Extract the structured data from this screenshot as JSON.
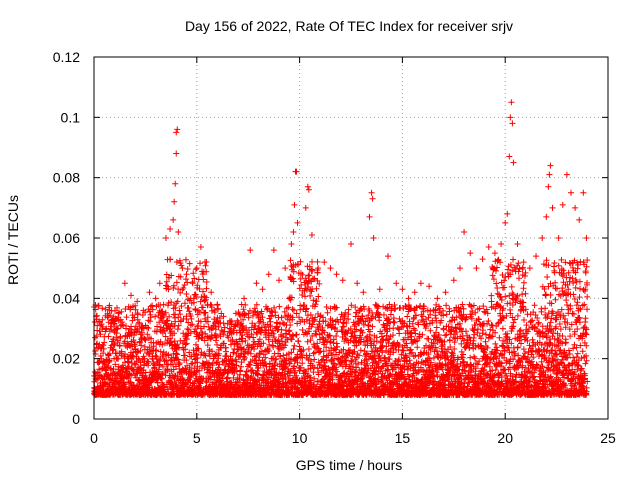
{
  "chart_data": {
    "type": "scatter",
    "title": "Day 156 of 2022, Rate Of TEC Index for receiver srjv",
    "xlabel": "GPS time / hours",
    "ylabel": "ROTI / TECUs",
    "xlim": [
      0,
      25
    ],
    "ylim": [
      0,
      0.12
    ],
    "x_ticks": [
      "0",
      "5",
      "10",
      "15",
      "20",
      "25"
    ],
    "y_ticks": [
      "0",
      "0.02",
      "0.04",
      "0.06",
      "0.08",
      "0.1",
      "0.12"
    ],
    "grid": true,
    "marker": "+",
    "color": "#ff0000",
    "series": [
      {
        "name": "ROTI",
        "points": [
          [
            0.1,
            0.034
          ],
          [
            0.3,
            0.031
          ],
          [
            0.6,
            0.03
          ],
          [
            0.9,
            0.033
          ],
          [
            1.2,
            0.035
          ],
          [
            1.5,
            0.045
          ],
          [
            1.8,
            0.041
          ],
          [
            2.1,
            0.039
          ],
          [
            2.4,
            0.036
          ],
          [
            2.7,
            0.042
          ],
          [
            3.0,
            0.04
          ],
          [
            3.2,
            0.045
          ],
          [
            3.5,
            0.06
          ],
          [
            3.7,
            0.063
          ],
          [
            3.85,
            0.066
          ],
          [
            3.9,
            0.072
          ],
          [
            3.95,
            0.078
          ],
          [
            4.0,
            0.088
          ],
          [
            4.0,
            0.095
          ],
          [
            4.05,
            0.096
          ],
          [
            4.1,
            0.062
          ],
          [
            4.3,
            0.05
          ],
          [
            4.5,
            0.048
          ],
          [
            4.8,
            0.045
          ],
          [
            5.0,
            0.05
          ],
          [
            5.2,
            0.057
          ],
          [
            5.4,
            0.052
          ],
          [
            5.7,
            0.042
          ],
          [
            6.0,
            0.038
          ],
          [
            6.3,
            0.034
          ],
          [
            6.6,
            0.03
          ],
          [
            6.9,
            0.035
          ],
          [
            7.3,
            0.04
          ],
          [
            7.6,
            0.056
          ],
          [
            7.9,
            0.045
          ],
          [
            8.2,
            0.043
          ],
          [
            8.5,
            0.048
          ],
          [
            8.75,
            0.056
          ],
          [
            9.0,
            0.046
          ],
          [
            9.3,
            0.05
          ],
          [
            9.6,
            0.058
          ],
          [
            9.7,
            0.062
          ],
          [
            9.75,
            0.071
          ],
          [
            9.8,
            0.082
          ],
          [
            9.85,
            0.082
          ],
          [
            9.9,
            0.065
          ],
          [
            10.3,
            0.07
          ],
          [
            10.4,
            0.077
          ],
          [
            10.45,
            0.076
          ],
          [
            10.6,
            0.061
          ],
          [
            10.9,
            0.05
          ],
          [
            11.2,
            0.052
          ],
          [
            11.5,
            0.05
          ],
          [
            11.8,
            0.048
          ],
          [
            12.1,
            0.046
          ],
          [
            12.5,
            0.058
          ],
          [
            12.8,
            0.045
          ],
          [
            13.1,
            0.042
          ],
          [
            13.4,
            0.067
          ],
          [
            13.5,
            0.075
          ],
          [
            13.55,
            0.073
          ],
          [
            13.6,
            0.06
          ],
          [
            13.9,
            0.043
          ],
          [
            14.3,
            0.054
          ],
          [
            14.7,
            0.045
          ],
          [
            15.0,
            0.043
          ],
          [
            15.3,
            0.04
          ],
          [
            15.6,
            0.042
          ],
          [
            15.9,
            0.045
          ],
          [
            16.3,
            0.044
          ],
          [
            16.7,
            0.04
          ],
          [
            17.1,
            0.042
          ],
          [
            17.5,
            0.046
          ],
          [
            17.8,
            0.05
          ],
          [
            18.0,
            0.062
          ],
          [
            18.3,
            0.055
          ],
          [
            18.6,
            0.05
          ],
          [
            18.9,
            0.053
          ],
          [
            19.2,
            0.057
          ],
          [
            19.5,
            0.055
          ],
          [
            19.8,
            0.058
          ],
          [
            20.0,
            0.065
          ],
          [
            20.1,
            0.068
          ],
          [
            20.2,
            0.087
          ],
          [
            20.25,
            0.1
          ],
          [
            20.3,
            0.105
          ],
          [
            20.35,
            0.098
          ],
          [
            20.4,
            0.085
          ],
          [
            20.6,
            0.058
          ],
          [
            20.9,
            0.052
          ],
          [
            21.2,
            0.05
          ],
          [
            21.5,
            0.054
          ],
          [
            21.8,
            0.06
          ],
          [
            22.0,
            0.067
          ],
          [
            22.1,
            0.077
          ],
          [
            22.15,
            0.081
          ],
          [
            22.2,
            0.084
          ],
          [
            22.3,
            0.07
          ],
          [
            22.6,
            0.06
          ],
          [
            22.8,
            0.071
          ],
          [
            23.0,
            0.081
          ],
          [
            23.2,
            0.075
          ],
          [
            23.4,
            0.07
          ],
          [
            23.6,
            0.066
          ],
          [
            23.8,
            0.075
          ],
          [
            23.95,
            0.06
          ],
          [
            0.4,
            0.012
          ],
          [
            1.0,
            0.015
          ],
          [
            2.0,
            0.018
          ],
          [
            3.0,
            0.014
          ],
          [
            4.0,
            0.02
          ],
          [
            5.0,
            0.016
          ],
          [
            6.0,
            0.013
          ],
          [
            7.0,
            0.012
          ],
          [
            8.0,
            0.017
          ],
          [
            9.0,
            0.015
          ],
          [
            10.0,
            0.016
          ],
          [
            11.0,
            0.018
          ],
          [
            12.0,
            0.014
          ],
          [
            13.0,
            0.015
          ],
          [
            14.0,
            0.013
          ],
          [
            15.0,
            0.017
          ],
          [
            16.0,
            0.012
          ],
          [
            17.0,
            0.014
          ],
          [
            18.0,
            0.016
          ],
          [
            19.0,
            0.018
          ],
          [
            20.0,
            0.015
          ],
          [
            21.0,
            0.017
          ],
          [
            22.0,
            0.013
          ],
          [
            23.0,
            0.016
          ]
        ]
      }
    ]
  }
}
